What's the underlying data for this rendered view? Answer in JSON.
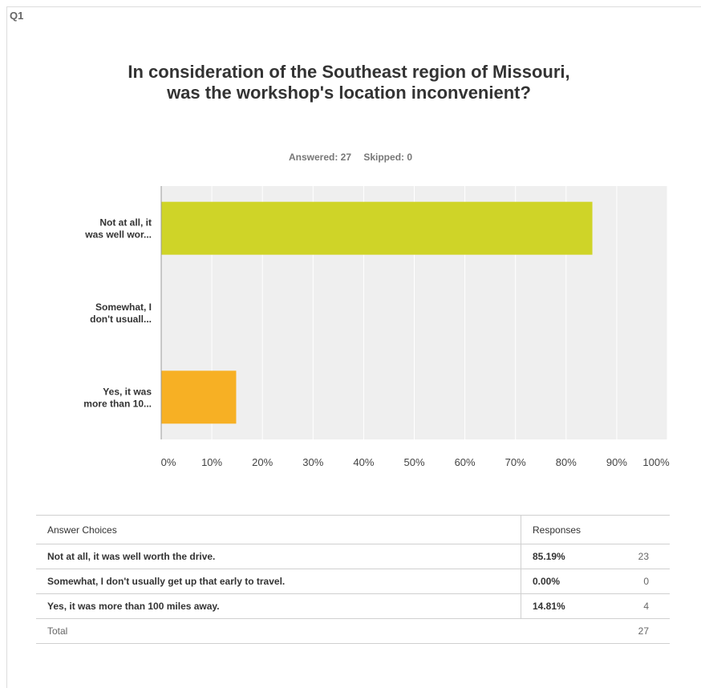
{
  "question": {
    "number": "Q1",
    "title": "In consideration of the Southeast region of Missouri, was the workshop's location inconvenient?",
    "answered": "Answered: 27",
    "skipped": "Skipped: 0"
  },
  "chart_data": {
    "type": "bar",
    "orientation": "horizontal",
    "categories": [
      "Not at all, it was well wor...",
      "Somewhat, I don't usuall...",
      "Yes, it was more than 10..."
    ],
    "category_lines": [
      [
        "Not at all, it",
        "was well wor..."
      ],
      [
        "Somewhat, I",
        "don't usuall..."
      ],
      [
        "Yes, it was",
        "more than 10..."
      ]
    ],
    "values": [
      85.19,
      0,
      14.81
    ],
    "colors": [
      "#cfd428",
      "#cccccc",
      "#f7b024"
    ],
    "xlim": [
      0,
      100
    ],
    "xticks": [
      "0%",
      "10%",
      "20%",
      "30%",
      "40%",
      "50%",
      "60%",
      "70%",
      "80%",
      "90%",
      "100%"
    ],
    "grid": true
  },
  "table": {
    "headers": [
      "Answer Choices",
      "Responses"
    ],
    "rows": [
      {
        "answer": "Not at all, it was well worth the drive.",
        "percent": "85.19%",
        "count": "23"
      },
      {
        "answer": "Somewhat, I don't usually get up that early to travel.",
        "percent": "0.00%",
        "count": "0"
      },
      {
        "answer": "Yes, it was more than 100 miles away.",
        "percent": "14.81%",
        "count": "4"
      }
    ],
    "total_label": "Total",
    "total_count": "27"
  }
}
